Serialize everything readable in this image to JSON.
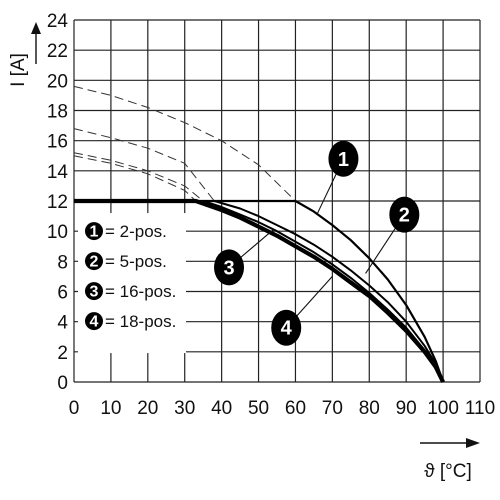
{
  "chart_data": {
    "type": "line",
    "xlabel": "ϑ [°C]",
    "ylabel": "I [A]",
    "xlim": [
      0,
      110
    ],
    "ylim": [
      0,
      24
    ],
    "x_ticks": [
      "0",
      "10",
      "20",
      "30",
      "40",
      "50",
      "60",
      "70",
      "80",
      "90",
      "100",
      "110"
    ],
    "y_ticks": [
      "0",
      "2",
      "4",
      "6",
      "8",
      "10",
      "12",
      "14",
      "16",
      "18",
      "20",
      "22",
      "24"
    ],
    "grid": true,
    "legend": [
      {
        "id": "1",
        "label": "= 2-pos."
      },
      {
        "id": "2",
        "label": "= 5-pos."
      },
      {
        "id": "3",
        "label": "= 16-pos."
      },
      {
        "id": "4",
        "label": "= 18-pos."
      }
    ],
    "series": [
      {
        "id": "1",
        "style": "solid-thin",
        "color": "#000000",
        "points": [
          [
            0,
            12
          ],
          [
            60,
            12
          ],
          [
            65,
            11.3
          ],
          [
            70,
            10.4
          ],
          [
            75,
            9.4
          ],
          [
            80,
            8.2
          ],
          [
            85,
            6.8
          ],
          [
            90,
            5.1
          ],
          [
            95,
            3.0
          ],
          [
            98,
            1.4
          ],
          [
            100,
            0
          ]
        ]
      },
      {
        "id": "2",
        "style": "solid-medium",
        "color": "#000000",
        "points": [
          [
            0,
            12
          ],
          [
            38,
            12
          ],
          [
            45,
            11.5
          ],
          [
            50,
            11.0
          ],
          [
            55,
            10.4
          ],
          [
            60,
            9.8
          ],
          [
            65,
            9.1
          ],
          [
            70,
            8.3
          ],
          [
            75,
            7.4
          ],
          [
            80,
            6.4
          ],
          [
            85,
            5.3
          ],
          [
            90,
            4.0
          ],
          [
            95,
            2.4
          ],
          [
            98,
            1.2
          ],
          [
            100,
            0
          ]
        ]
      },
      {
        "id": "3",
        "style": "solid-medium",
        "color": "#000000",
        "points": [
          [
            0,
            12
          ],
          [
            35,
            12
          ],
          [
            40,
            11.6
          ],
          [
            45,
            11.1
          ],
          [
            50,
            10.6
          ],
          [
            55,
            10.0
          ],
          [
            60,
            9.3
          ],
          [
            65,
            8.6
          ],
          [
            70,
            7.8
          ],
          [
            75,
            6.9
          ],
          [
            80,
            5.9
          ],
          [
            85,
            4.8
          ],
          [
            90,
            3.6
          ],
          [
            95,
            2.1
          ],
          [
            98,
            1.1
          ],
          [
            100,
            0
          ]
        ]
      },
      {
        "id": "4",
        "style": "solid-thick",
        "color": "#000000",
        "points": [
          [
            0,
            12
          ],
          [
            33,
            12
          ],
          [
            40,
            11.4
          ],
          [
            45,
            10.9
          ],
          [
            50,
            10.3
          ],
          [
            55,
            9.7
          ],
          [
            60,
            9.0
          ],
          [
            65,
            8.3
          ],
          [
            70,
            7.5
          ],
          [
            75,
            6.6
          ],
          [
            80,
            5.7
          ],
          [
            85,
            4.6
          ],
          [
            90,
            3.4
          ],
          [
            95,
            2.0
          ],
          [
            98,
            1.0
          ],
          [
            100,
            0
          ]
        ]
      }
    ],
    "derating_dashed": [
      {
        "id": "1",
        "points": [
          [
            0,
            19.6
          ],
          [
            10,
            19.0
          ],
          [
            20,
            18.2
          ],
          [
            30,
            17.2
          ],
          [
            40,
            16.0
          ],
          [
            50,
            14.4
          ],
          [
            60,
            12.0
          ]
        ]
      },
      {
        "id": "2",
        "points": [
          [
            0,
            16.8
          ],
          [
            10,
            16.2
          ],
          [
            20,
            15.5
          ],
          [
            30,
            14.5
          ],
          [
            38,
            12.0
          ]
        ]
      },
      {
        "id": "3",
        "points": [
          [
            0,
            15.2
          ],
          [
            10,
            14.7
          ],
          [
            20,
            14.0
          ],
          [
            30,
            13.0
          ],
          [
            35,
            12.0
          ]
        ]
      },
      {
        "id": "4",
        "points": [
          [
            0,
            15.0
          ],
          [
            10,
            14.5
          ],
          [
            20,
            13.8
          ],
          [
            30,
            12.7
          ],
          [
            33,
            12.0
          ]
        ]
      }
    ],
    "callouts": [
      {
        "id": "1",
        "badge_at": [
          73,
          14.8
        ],
        "pointer_to": [
          66,
          11.2
        ]
      },
      {
        "id": "2",
        "badge_at": [
          89.5,
          11.1
        ],
        "pointer_to": [
          79,
          7.2
        ]
      },
      {
        "id": "3",
        "badge_at": [
          42,
          7.6
        ],
        "pointer_to": [
          54,
          10.1
        ]
      },
      {
        "id": "4",
        "badge_at": [
          57.5,
          3.6
        ],
        "pointer_to": [
          70,
          7.0
        ]
      }
    ]
  }
}
